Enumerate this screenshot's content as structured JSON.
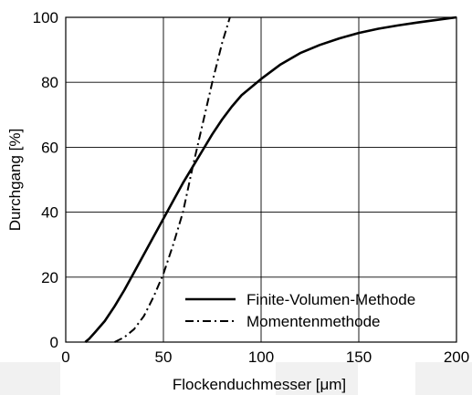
{
  "chart_data": {
    "type": "line",
    "title": "",
    "xlabel": "Flockenduchmesser [μm]",
    "ylabel": "Durchgang [%]",
    "xlim": [
      0,
      200
    ],
    "ylim": [
      0,
      100
    ],
    "x_ticks": [
      "0",
      "50",
      "100",
      "150",
      "200"
    ],
    "y_ticks": [
      "0",
      "20",
      "40",
      "60",
      "80",
      "100"
    ],
    "grid": true,
    "legend_position": "bottom-right",
    "series": [
      {
        "name": "Finite-Volumen-Methode",
        "style": "solid",
        "color": "#000000",
        "x": [
          10,
          12,
          15,
          20,
          25,
          30,
          35,
          40,
          45,
          50,
          55,
          60,
          65,
          70,
          75,
          80,
          85,
          90,
          95,
          100,
          110,
          120,
          130,
          140,
          150,
          160,
          170,
          180,
          190,
          200
        ],
        "y": [
          0,
          1,
          3,
          6.5,
          11,
          16,
          21.5,
          27,
          32.5,
          38,
          43.5,
          49,
          54,
          59,
          64,
          68.5,
          72.5,
          76,
          78.5,
          81,
          85.5,
          89,
          91.5,
          93.5,
          95.2,
          96.5,
          97.5,
          98.4,
          99.2,
          100
        ]
      },
      {
        "name": "Momentenmethode",
        "style": "dash-dot",
        "color": "#000000",
        "x": [
          25,
          30,
          35,
          40,
          45,
          50,
          55,
          60,
          65,
          70,
          75,
          80,
          84
        ],
        "y": [
          0,
          1.5,
          4,
          8,
          14,
          21,
          30,
          40,
          54,
          67,
          80,
          92,
          100
        ]
      }
    ]
  }
}
